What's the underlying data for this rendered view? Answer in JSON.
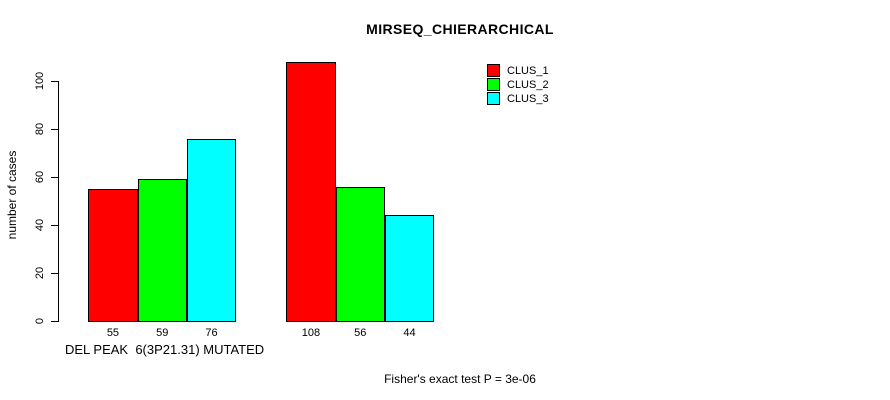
{
  "chart_data": {
    "type": "bar",
    "title": "MIRSEQ_CHIERARCHICAL",
    "ylabel": "number of cases",
    "xlabel": "DEL PEAK  6(3P21.31) MUTATED",
    "annotation": "Fisher's exact test P = 3e-06",
    "categories": [
      "",
      ""
    ],
    "series": [
      {
        "name": "CLUS_1",
        "color": "#ff0000",
        "values": [
          55,
          108
        ]
      },
      {
        "name": "CLUS_2",
        "color": "#00ff00",
        "values": [
          59,
          56
        ]
      },
      {
        "name": "CLUS_3",
        "color": "#00ffff",
        "values": [
          76,
          44
        ]
      }
    ],
    "bar_value_labels_shown": true,
    "yticks": [
      0,
      20,
      40,
      60,
      80,
      100
    ],
    "ylim": [
      0,
      110
    ],
    "legend_position": "top-right",
    "grid": false,
    "background_color": "#ffffff",
    "text_color": "#000000"
  }
}
